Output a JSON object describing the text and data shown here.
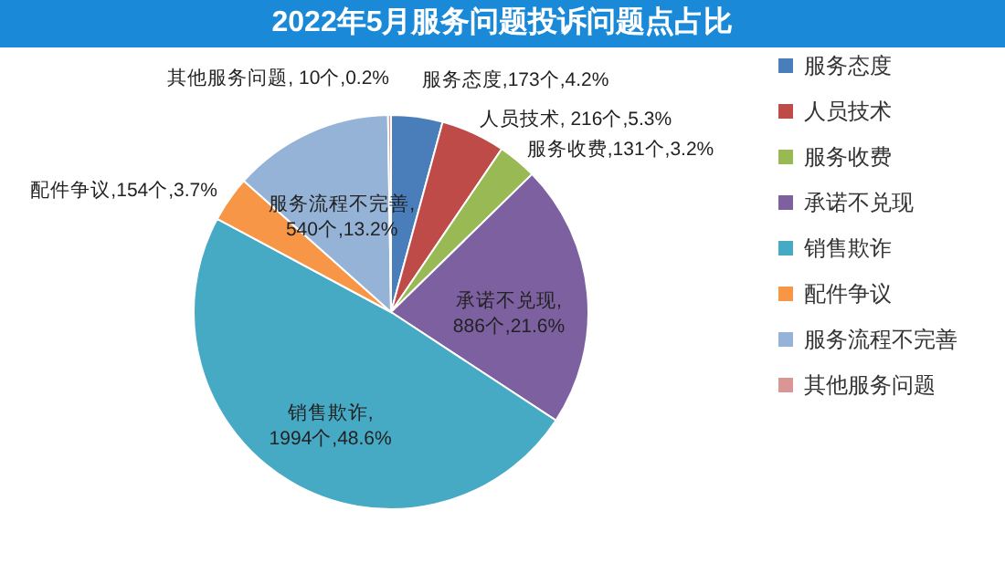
{
  "chart_data": {
    "type": "pie",
    "title": "2022年5月服务问题投诉问题点占比",
    "categories": [
      "服务态度",
      "人员技术",
      "服务收费",
      "承诺不兑现",
      "销售欺诈",
      "配件争议",
      "服务流程不完善",
      "其他服务问题"
    ],
    "values": [
      173,
      216,
      131,
      886,
      1994,
      154,
      540,
      10
    ],
    "colors": [
      "#4a7ebb",
      "#be4b48",
      "#98b954",
      "#7d60a0",
      "#46aac5",
      "#f79646",
      "#95b3d7",
      "#d99694"
    ],
    "value_labels": [
      "服务态度,173个,4.2%",
      "人员技术, 216个,5.3%",
      "服务收费,131个,3.2%",
      "承诺不兑现, 886个,21.6%",
      "销售欺诈, 1994个,48.6%",
      "配件争议,154个,3.7%",
      "服务流程不完善, 540个,13.2%",
      "其他服务问题, 10个,0.2%"
    ],
    "legend": "right"
  }
}
